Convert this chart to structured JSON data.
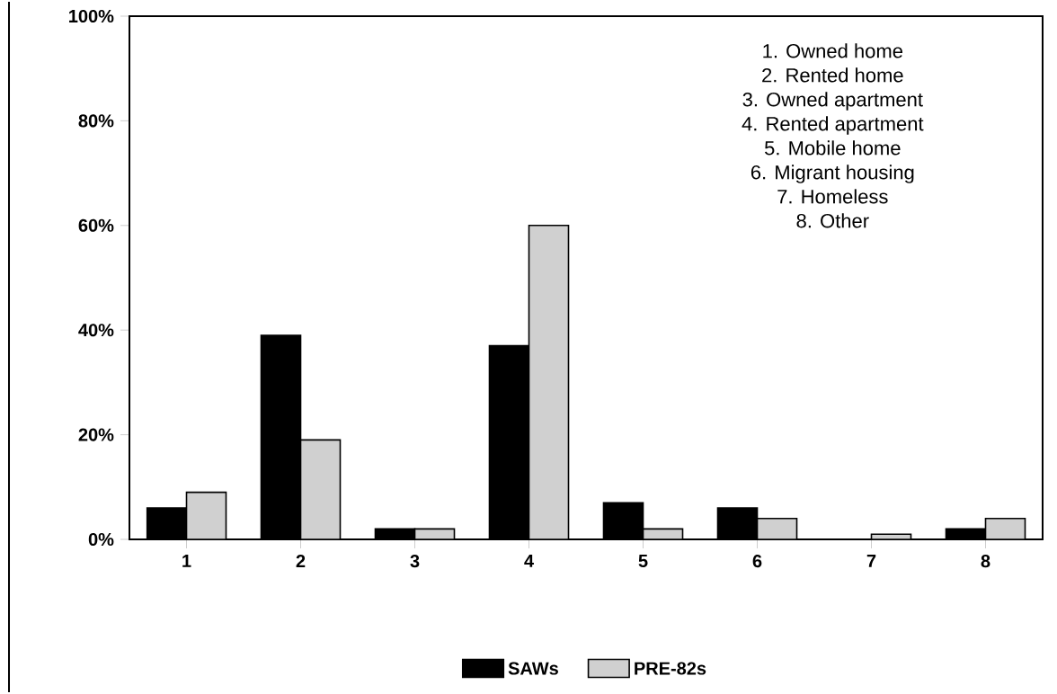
{
  "chart_data": {
    "type": "bar",
    "categories": [
      "1",
      "2",
      "3",
      "4",
      "5",
      "6",
      "7",
      "8"
    ],
    "series": [
      {
        "name": "SAWs",
        "color": "#000000",
        "values": [
          6,
          39,
          2,
          37,
          7,
          6,
          0,
          2
        ]
      },
      {
        "name": "PRE-82s",
        "color": "#d0d0d0",
        "values": [
          9,
          19,
          2,
          60,
          2,
          4,
          1,
          4
        ]
      }
    ],
    "ylim": [
      0,
      100
    ],
    "yticks": [
      {
        "value": 0,
        "label": "0%"
      },
      {
        "value": 20,
        "label": "20%"
      },
      {
        "value": 40,
        "label": "40%"
      },
      {
        "value": 60,
        "label": "60%"
      },
      {
        "value": 80,
        "label": "80%"
      },
      {
        "value": 100,
        "label": "100%"
      }
    ],
    "annotations": [
      "1. Owned home",
      "2. Rented home",
      "3. Owned apartment",
      "4. Rented apartment",
      "5. Mobile home",
      "6. Migrant housing",
      "7. Homeless",
      "8. Other"
    ],
    "legend": "bottom",
    "grid": false
  }
}
